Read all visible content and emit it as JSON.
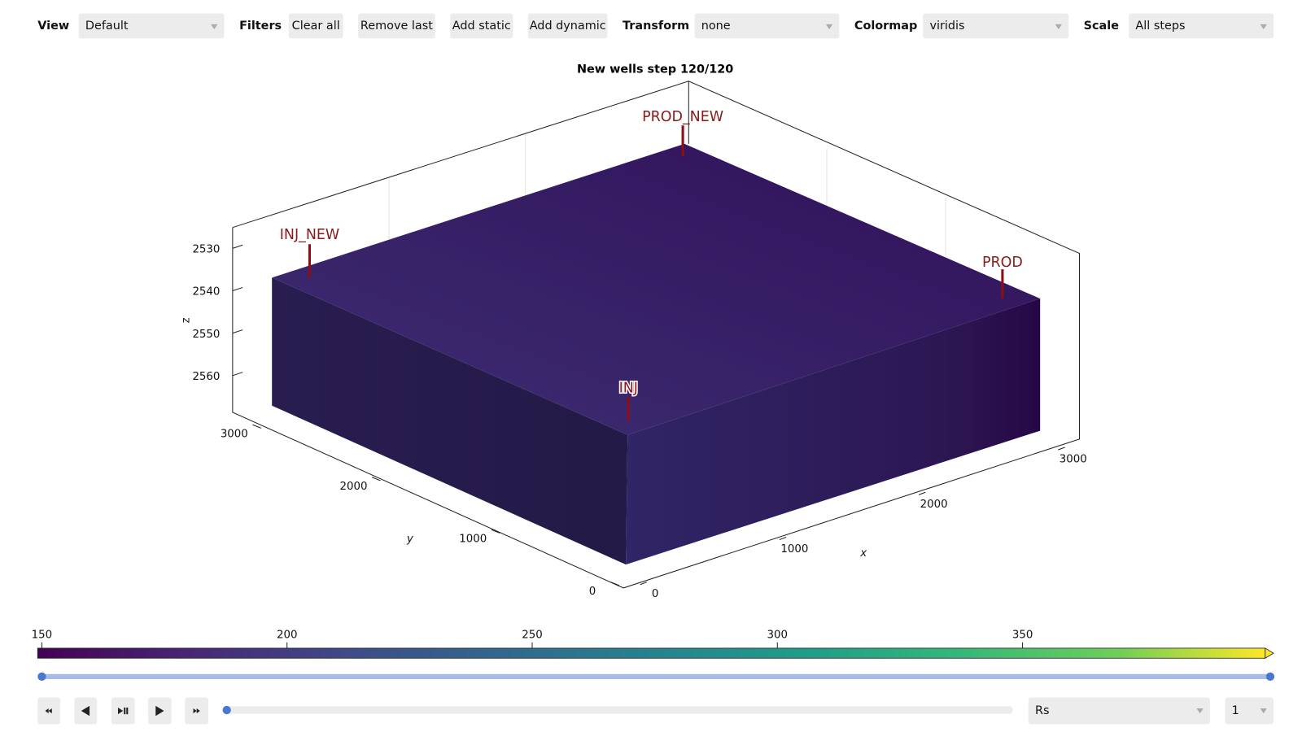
{
  "toolbar": {
    "view_label": "View",
    "view_value": "Default",
    "filters_label": "Filters",
    "buttons": [
      "Clear all",
      "Remove last",
      "Add static",
      "Add dynamic"
    ],
    "transform_label": "Transform",
    "transform_value": "none",
    "colormap_label": "Colormap",
    "colormap_value": "viridis",
    "scale_label": "Scale",
    "scale_value": "All steps"
  },
  "plot": {
    "title": "New wells step 120/120",
    "z_label": "z",
    "z_ticks": [
      2530,
      2540,
      2550,
      2560
    ],
    "y_label": "y",
    "y_ticks": [
      3000,
      2000,
      1000,
      0
    ],
    "x_label": "x",
    "x_ticks": [
      0,
      1000,
      2000,
      3000
    ],
    "wells": [
      "PROD_NEW",
      "INJ_NEW",
      "PROD",
      "INJ"
    ]
  },
  "colorbar": {
    "ticks": [
      150,
      200,
      250,
      300,
      350
    ]
  },
  "controls": {
    "variable": "Rs",
    "step": "1"
  }
}
